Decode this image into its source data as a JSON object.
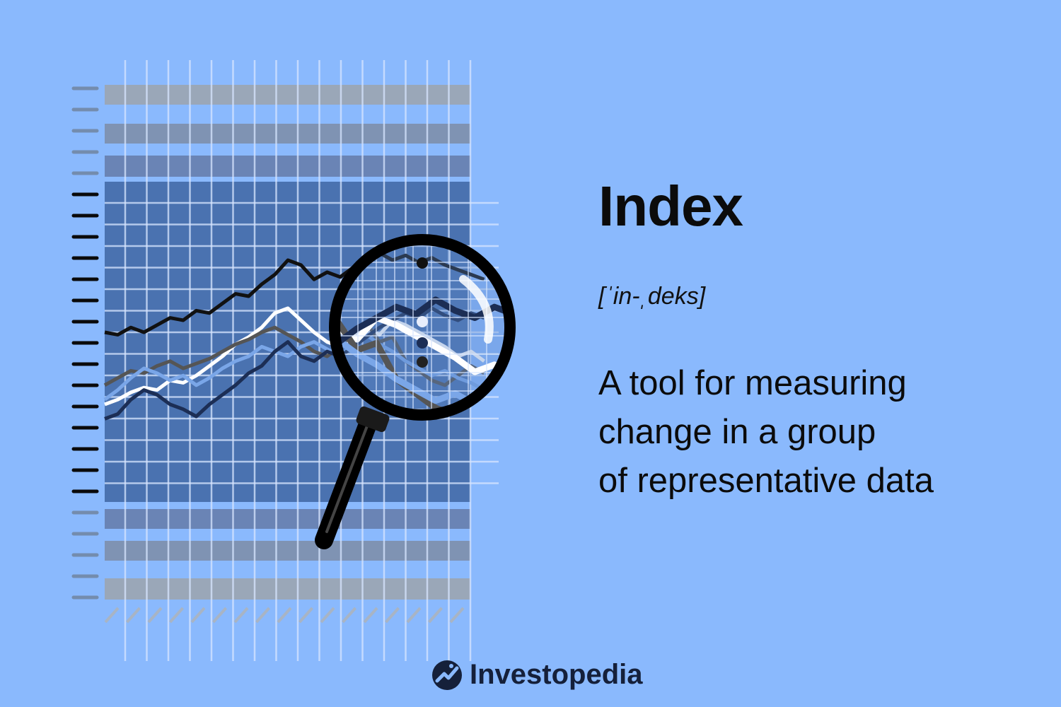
{
  "term": "Index",
  "pronunciation": "[ˈin-ˌdeks]",
  "definition_lines": [
    "A tool for measuring",
    "change in a group",
    "of representative data"
  ],
  "brand": {
    "name": "Investopedia",
    "logo_icon": "investopedia-logo-icon"
  },
  "colors": {
    "background": "#8ab9fd",
    "grid_fill": "#4a72b0",
    "text": "#0b0b0b"
  },
  "illustration": {
    "icon": "magnifying-glass-over-chart-icon",
    "lines": [
      {
        "color": "#111111",
        "values": [
          50,
          49,
          52,
          50,
          53,
          56,
          55,
          59,
          58,
          62,
          66,
          65,
          70,
          74,
          80,
          78,
          72,
          75,
          73,
          77,
          80,
          83,
          80,
          82,
          79,
          81,
          78,
          76,
          74,
          72
        ]
      },
      {
        "color": "#ffffff",
        "values": [
          20,
          22,
          25,
          27,
          26,
          30,
          29,
          32,
          36,
          40,
          45,
          48,
          52,
          58,
          60,
          55,
          50,
          46,
          44,
          48,
          52,
          49,
          55,
          53,
          50,
          47,
          44,
          40,
          42,
          38
        ]
      },
      {
        "color": "#555555",
        "values": [
          28,
          31,
          34,
          33,
          36,
          38,
          35,
          37,
          39,
          42,
          45,
          47,
          50,
          52,
          49,
          46,
          42,
          40,
          44,
          50,
          54,
          46,
          48,
          38,
          34,
          30,
          28,
          32,
          36,
          33
        ]
      },
      {
        "color": "#7aa6e8",
        "values": [
          22,
          26,
          31,
          35,
          33,
          30,
          32,
          28,
          31,
          35,
          38,
          40,
          44,
          42,
          40,
          44,
          46,
          43,
          40,
          46,
          49,
          45,
          42,
          38,
          35,
          32,
          34,
          31,
          29,
          26
        ]
      },
      {
        "color": "#1c2e55",
        "values": [
          14,
          16,
          22,
          26,
          24,
          20,
          18,
          15,
          20,
          24,
          28,
          33,
          36,
          42,
          46,
          40,
          38,
          42,
          40,
          44,
          48,
          52,
          55,
          58,
          56,
          60,
          57,
          55,
          58,
          56
        ]
      }
    ]
  }
}
